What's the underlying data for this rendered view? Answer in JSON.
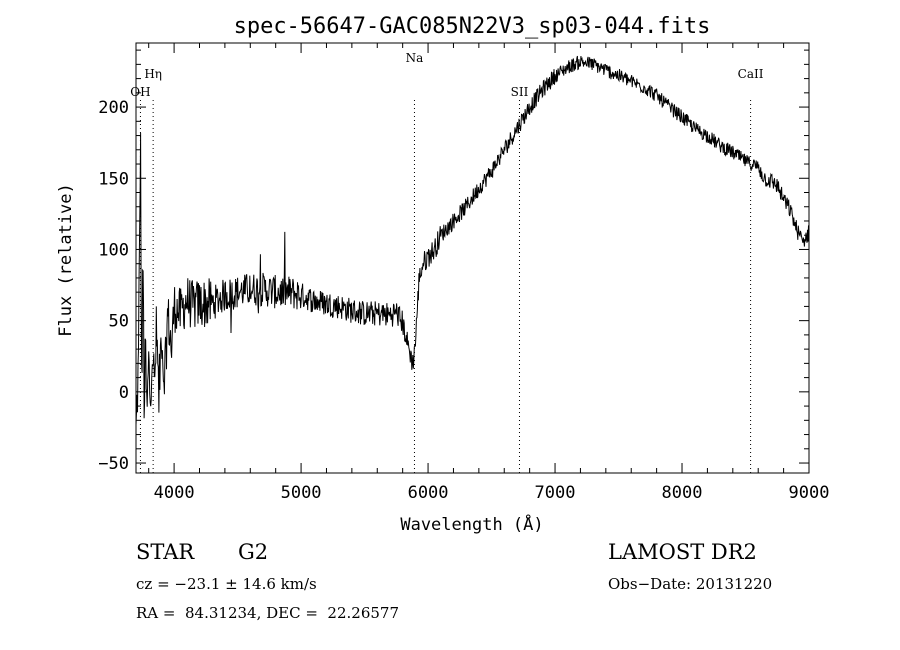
{
  "chart_data": {
    "type": "line",
    "title": "spec-56647-GAC085N22V3_sp03-044.fits",
    "xlabel": "Wavelength (Å)",
    "ylabel": "Flux (relative)",
    "xlim": [
      3700,
      9000
    ],
    "ylim": [
      -57,
      245
    ],
    "xticks_major": [
      4000,
      5000,
      6000,
      7000,
      8000,
      9000
    ],
    "yticks_major": [
      -50,
      0,
      50,
      100,
      150,
      200
    ],
    "grid": false,
    "line_color": "#000000",
    "series": [
      {
        "x": [
          3700,
          3720,
          3735,
          3745,
          3755,
          3765,
          3775,
          3785,
          3800,
          3815,
          3830,
          3845,
          3860,
          3880,
          3900,
          3920,
          3950,
          3980,
          4000,
          4050,
          4100,
          4150,
          4200,
          4300,
          4400,
          4500,
          4600,
          4700,
          4800,
          4900,
          5000,
          5100,
          5200,
          5300,
          5400,
          5500,
          5600,
          5700,
          5750,
          5800,
          5850,
          5880,
          5900,
          5930,
          5960,
          6000,
          6050,
          6100,
          6200,
          6300,
          6400,
          6500,
          6600,
          6700,
          6800,
          6900,
          7000,
          7100,
          7200,
          7300,
          7400,
          7500,
          7600,
          7700,
          7800,
          7900,
          8000,
          8100,
          8200,
          8300,
          8400,
          8500,
          8600,
          8650,
          8700,
          8750,
          8800,
          8850,
          8900,
          8950,
          9000
        ],
        "y": [
          -30,
          20,
          185,
          -10,
          100,
          -15,
          30,
          -20,
          20,
          -10,
          35,
          0,
          40,
          -5,
          45,
          10,
          55,
          30,
          60,
          55,
          65,
          60,
          62,
          62,
          68,
          70,
          72,
          72,
          70,
          70,
          68,
          64,
          62,
          60,
          57,
          55,
          55,
          54,
          56,
          48,
          30,
          20,
          35,
          80,
          90,
          95,
          100,
          110,
          120,
          130,
          143,
          155,
          170,
          185,
          200,
          212,
          222,
          228,
          232,
          230,
          226,
          222,
          218,
          214,
          208,
          200,
          193,
          185,
          180,
          173,
          168,
          162,
          158,
          150,
          148,
          145,
          135,
          128,
          115,
          105,
          112
        ]
      }
    ],
    "line_markers": [
      {
        "label": "OH",
        "x": 3735
      },
      {
        "label": "Hη",
        "x": 3835
      },
      {
        "label": "Na",
        "x": 5893
      },
      {
        "label": "SII",
        "x": 6720
      },
      {
        "label": "CaII",
        "x": 8540
      }
    ]
  },
  "info": {
    "class_label": "STAR",
    "subclass": "G2",
    "survey": "LAMOST DR2",
    "redshift": "cz = −23.1 ± 14.6 km/s",
    "obs_date": "Obs−Date: 20131220",
    "coords": "RA =  84.31234, DEC =  22.26577"
  }
}
